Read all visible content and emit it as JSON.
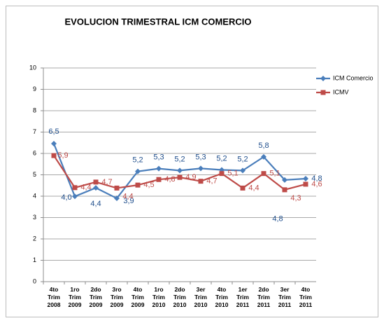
{
  "chart_data": {
    "type": "line",
    "title": "EVOLUCION TRIMESTRAL ICM COMERCIO",
    "categories": [
      "4to Trim 2008",
      "1ro Trim 2009",
      "2do Trim 2009",
      "3ro Trim 2009",
      "4to Trim 2009",
      "1ro Trim 2010",
      "2do Trim 2010",
      "3er Trim 2010",
      "4to Trim 2010",
      "1er Trim 2011",
      "2do Trim 2011",
      "3er Trim 2011",
      "4to Trim 2011"
    ],
    "series": [
      {
        "name": "ICM Comercio",
        "color": "#4a7ebb",
        "marker": "diamond",
        "values": [
          6.46,
          3.99,
          4.39,
          3.9,
          5.16,
          5.29,
          5.2,
          5.3,
          5.23,
          5.2,
          5.84,
          4.76,
          4.82
        ],
        "value_labels": [
          "6,5",
          "4,0",
          "4,4",
          "3,9",
          "5,2",
          "5,3",
          "5,2",
          "5,3",
          "5,2",
          "5,2",
          "5,8",
          "4,8",
          "4,8"
        ]
      },
      {
        "name": "ICMV",
        "color": "#be4b48",
        "marker": "square",
        "values": [
          5.9,
          4.4,
          4.66,
          4.38,
          4.52,
          4.78,
          4.88,
          4.7,
          5.06,
          4.38,
          5.06,
          4.3,
          4.56
        ],
        "value_labels": [
          "5,9",
          "4,4",
          "4,7",
          "4,4",
          "4,5",
          "4,8",
          "4,9",
          "4,7",
          "5,1",
          "4,4",
          "5,1",
          "4,3",
          "4,6"
        ]
      }
    ],
    "ylim": [
      0,
      10
    ],
    "yticks": [
      0,
      1,
      2,
      3,
      4,
      5,
      6,
      7,
      8,
      9,
      10
    ],
    "grid": true,
    "legend": "right"
  }
}
